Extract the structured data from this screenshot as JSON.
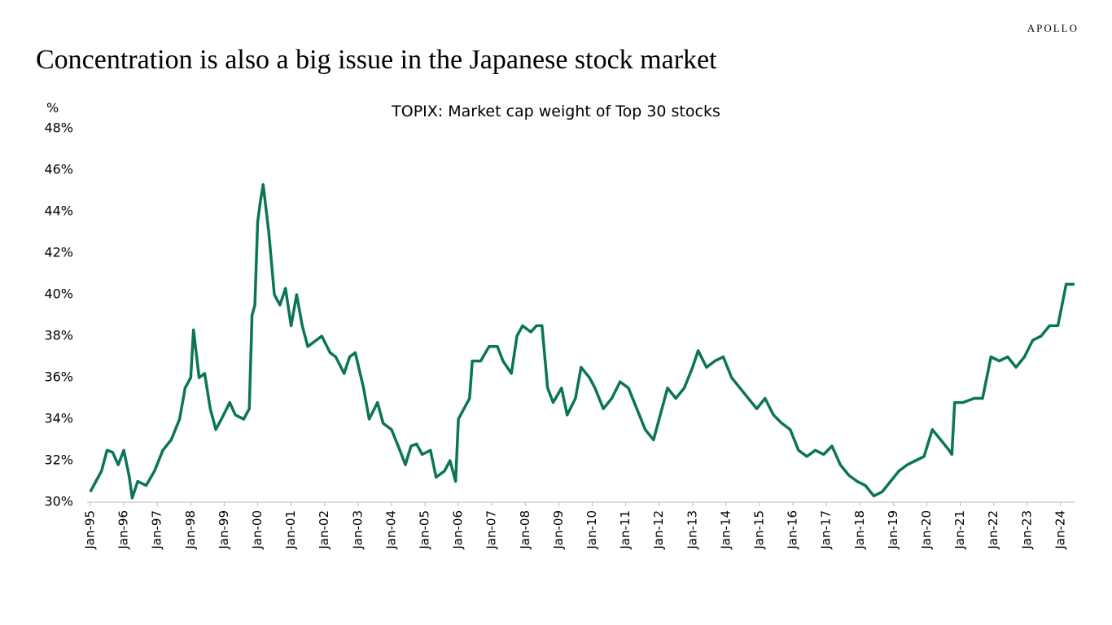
{
  "brand": "APOLLO",
  "chart_data": {
    "type": "line",
    "title": "Concentration is also a big issue in the Japanese stock market",
    "subtitle": "TOPIX: Market cap weight of Top 30 stocks",
    "y_label": "%",
    "x": [
      "1995-01",
      "1995-03",
      "1995-05",
      "1995-07",
      "1995-09",
      "1995-11",
      "1996-01",
      "1996-03",
      "1996-04",
      "1996-06",
      "1996-09",
      "1996-12",
      "1997-03",
      "1997-06",
      "1997-09",
      "1997-11",
      "1998-01",
      "1998-02",
      "1998-04",
      "1998-06",
      "1998-08",
      "1998-10",
      "1998-12",
      "1999-03",
      "1999-05",
      "1999-08",
      "1999-10",
      "1999-11",
      "1999-12",
      "2000-01",
      "2000-02",
      "2000-03",
      "2000-05",
      "2000-07",
      "2000-09",
      "2000-11",
      "2001-01",
      "2001-03",
      "2001-05",
      "2001-07",
      "2001-10",
      "2001-12",
      "2002-03",
      "2002-05",
      "2002-08",
      "2002-10",
      "2002-12",
      "2003-03",
      "2003-05",
      "2003-08",
      "2003-10",
      "2004-01",
      "2004-04",
      "2004-06",
      "2004-08",
      "2004-10",
      "2004-12",
      "2005-03",
      "2005-05",
      "2005-08",
      "2005-10",
      "2005-12",
      "2006-01",
      "2006-03",
      "2006-05",
      "2006-06",
      "2006-09",
      "2006-12",
      "2007-03",
      "2007-05",
      "2007-08",
      "2007-10",
      "2007-12",
      "2008-03",
      "2008-05",
      "2008-07",
      "2008-09",
      "2008-11",
      "2009-02",
      "2009-04",
      "2009-07",
      "2009-09",
      "2009-12",
      "2010-02",
      "2010-05",
      "2010-08",
      "2010-11",
      "2011-02",
      "2011-05",
      "2011-08",
      "2011-11",
      "2012-01",
      "2012-04",
      "2012-07",
      "2012-10",
      "2013-01",
      "2013-03",
      "2013-06",
      "2013-09",
      "2013-12",
      "2014-03",
      "2014-06",
      "2014-09",
      "2014-12",
      "2015-03",
      "2015-06",
      "2015-09",
      "2015-12",
      "2016-03",
      "2016-06",
      "2016-09",
      "2016-12",
      "2017-03",
      "2017-06",
      "2017-09",
      "2017-12",
      "2018-03",
      "2018-06",
      "2018-09",
      "2018-12",
      "2019-03",
      "2019-06",
      "2019-09",
      "2019-12",
      "2020-03",
      "2020-06",
      "2020-09",
      "2020-10",
      "2020-11",
      "2021-02",
      "2021-06",
      "2021-09",
      "2021-12",
      "2022-03",
      "2022-06",
      "2022-09",
      "2022-12",
      "2023-03",
      "2023-06",
      "2023-09",
      "2023-12",
      "2024-03",
      "2024-06"
    ],
    "series": [
      {
        "color": "#0a7557",
        "values": [
          30.5,
          31.0,
          31.5,
          32.5,
          32.4,
          31.8,
          32.5,
          31.2,
          30.2,
          31.0,
          30.8,
          31.5,
          32.5,
          33.0,
          34.0,
          35.5,
          36.0,
          38.3,
          36.0,
          36.2,
          34.5,
          33.5,
          34.0,
          34.8,
          34.2,
          34.0,
          34.5,
          39.0,
          39.5,
          43.5,
          44.5,
          45.3,
          43.0,
          40.0,
          39.5,
          40.3,
          38.5,
          40.0,
          38.5,
          37.5,
          37.8,
          38.0,
          37.2,
          37.0,
          36.2,
          37.0,
          37.2,
          35.5,
          34.0,
          34.8,
          33.8,
          33.5,
          32.5,
          31.8,
          32.7,
          32.8,
          32.3,
          32.5,
          31.2,
          31.5,
          32.0,
          31.0,
          34.0,
          34.5,
          35.0,
          36.8,
          36.8,
          37.5,
          37.5,
          36.8,
          36.2,
          38.0,
          38.5,
          38.2,
          38.5,
          38.5,
          35.5,
          34.8,
          35.5,
          34.2,
          35.0,
          36.5,
          36.0,
          35.5,
          34.5,
          35.0,
          35.8,
          35.5,
          34.5,
          33.5,
          33.0,
          34.0,
          35.5,
          35.0,
          35.5,
          36.5,
          37.3,
          36.5,
          36.8,
          37.0,
          36.0,
          35.5,
          35.0,
          34.5,
          35.0,
          34.2,
          33.8,
          33.5,
          32.5,
          32.2,
          32.5,
          32.3,
          32.7,
          31.8,
          31.3,
          31.0,
          30.8,
          30.3,
          30.5,
          31.0,
          31.5,
          31.8,
          32.0,
          32.2,
          33.5,
          33.0,
          32.5,
          32.3,
          34.8,
          34.8,
          35.0,
          35.0,
          37.0,
          36.8,
          37.0,
          36.5,
          37.0,
          37.8,
          38.0,
          38.5,
          38.5,
          40.5,
          40.5
        ]
      }
    ],
    "xlim": [
      "1995-01",
      "2024-06"
    ],
    "xticks": [
      {
        "value": "1995-01",
        "label": "Jan-95"
      },
      {
        "value": "1996-01",
        "label": "Jan-96"
      },
      {
        "value": "1997-01",
        "label": "Jan-97"
      },
      {
        "value": "1998-01",
        "label": "Jan-98"
      },
      {
        "value": "1999-01",
        "label": "Jan-99"
      },
      {
        "value": "2000-01",
        "label": "Jan-00"
      },
      {
        "value": "2001-01",
        "label": "Jan-01"
      },
      {
        "value": "2002-01",
        "label": "Jan-02"
      },
      {
        "value": "2003-01",
        "label": "Jan-03"
      },
      {
        "value": "2004-01",
        "label": "Jan-04"
      },
      {
        "value": "2005-01",
        "label": "Jan-05"
      },
      {
        "value": "2006-01",
        "label": "Jan-06"
      },
      {
        "value": "2007-01",
        "label": "Jan-07"
      },
      {
        "value": "2008-01",
        "label": "Jan-08"
      },
      {
        "value": "2009-01",
        "label": "Jan-09"
      },
      {
        "value": "2010-01",
        "label": "Jan-10"
      },
      {
        "value": "2011-01",
        "label": "Jan-11"
      },
      {
        "value": "2012-01",
        "label": "Jan-12"
      },
      {
        "value": "2013-01",
        "label": "Jan-13"
      },
      {
        "value": "2014-01",
        "label": "Jan-14"
      },
      {
        "value": "2015-01",
        "label": "Jan-15"
      },
      {
        "value": "2016-01",
        "label": "Jan-16"
      },
      {
        "value": "2017-01",
        "label": "Jan-17"
      },
      {
        "value": "2018-01",
        "label": "Jan-18"
      },
      {
        "value": "2019-01",
        "label": "Jan-19"
      },
      {
        "value": "2020-01",
        "label": "Jan-20"
      },
      {
        "value": "2021-01",
        "label": "Jan-21"
      },
      {
        "value": "2022-01",
        "label": "Jan-22"
      },
      {
        "value": "2023-01",
        "label": "Jan-23"
      },
      {
        "value": "2024-01",
        "label": "Jan-24"
      }
    ],
    "ylim": [
      30,
      48
    ],
    "yticks": [
      {
        "value": 30,
        "label": "30%"
      },
      {
        "value": 32,
        "label": "32%"
      },
      {
        "value": 34,
        "label": "34%"
      },
      {
        "value": 36,
        "label": "36%"
      },
      {
        "value": 38,
        "label": "38%"
      },
      {
        "value": 40,
        "label": "40%"
      },
      {
        "value": 42,
        "label": "42%"
      },
      {
        "value": 44,
        "label": "44%"
      },
      {
        "value": 46,
        "label": "46%"
      },
      {
        "value": 48,
        "label": "48%"
      }
    ],
    "grid": false
  }
}
